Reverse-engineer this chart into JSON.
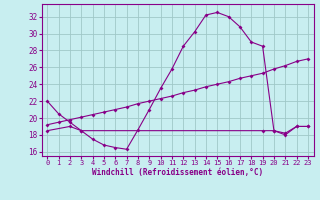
{
  "xlabel": "Windchill (Refroidissement éolien,°C)",
  "bg_color": "#c8eef0",
  "grid_color": "#a0c8c8",
  "line_color": "#880088",
  "xlim": [
    -0.5,
    23.5
  ],
  "ylim": [
    15.5,
    33.5
  ],
  "yticks": [
    16,
    18,
    20,
    22,
    24,
    26,
    28,
    30,
    32
  ],
  "xticks": [
    0,
    1,
    2,
    3,
    4,
    5,
    6,
    7,
    8,
    9,
    10,
    11,
    12,
    13,
    14,
    15,
    16,
    17,
    18,
    19,
    20,
    21,
    22,
    23
  ],
  "line1_x": [
    0,
    1,
    2,
    3,
    4,
    5,
    6,
    7,
    8,
    9,
    10,
    11,
    12,
    13,
    14,
    15,
    16,
    17,
    18,
    19,
    20,
    21,
    22,
    23
  ],
  "line1_y": [
    22.0,
    20.5,
    19.5,
    18.5,
    17.5,
    16.8,
    16.5,
    16.3,
    18.6,
    21.0,
    23.5,
    25.8,
    28.5,
    30.2,
    32.2,
    32.5,
    32.0,
    30.8,
    29.0,
    28.5,
    18.5,
    18.2,
    19.0,
    19.0
  ],
  "line2_x": [
    0,
    2,
    3,
    19,
    20,
    21,
    22,
    23
  ],
  "line2_y": [
    18.5,
    19.0,
    18.5,
    18.5,
    18.5,
    18.0,
    19.0,
    19.0
  ],
  "line3_x": [
    0,
    1,
    2,
    3,
    4,
    5,
    6,
    7,
    8,
    9,
    10,
    11,
    12,
    13,
    14,
    15,
    16,
    17,
    18,
    19,
    20,
    21,
    22,
    23
  ],
  "line3_y": [
    19.2,
    19.5,
    19.8,
    20.1,
    20.4,
    20.7,
    21.0,
    21.3,
    21.7,
    22.0,
    22.3,
    22.6,
    23.0,
    23.3,
    23.7,
    24.0,
    24.3,
    24.7,
    25.0,
    25.3,
    25.8,
    26.2,
    26.7,
    27.0
  ]
}
